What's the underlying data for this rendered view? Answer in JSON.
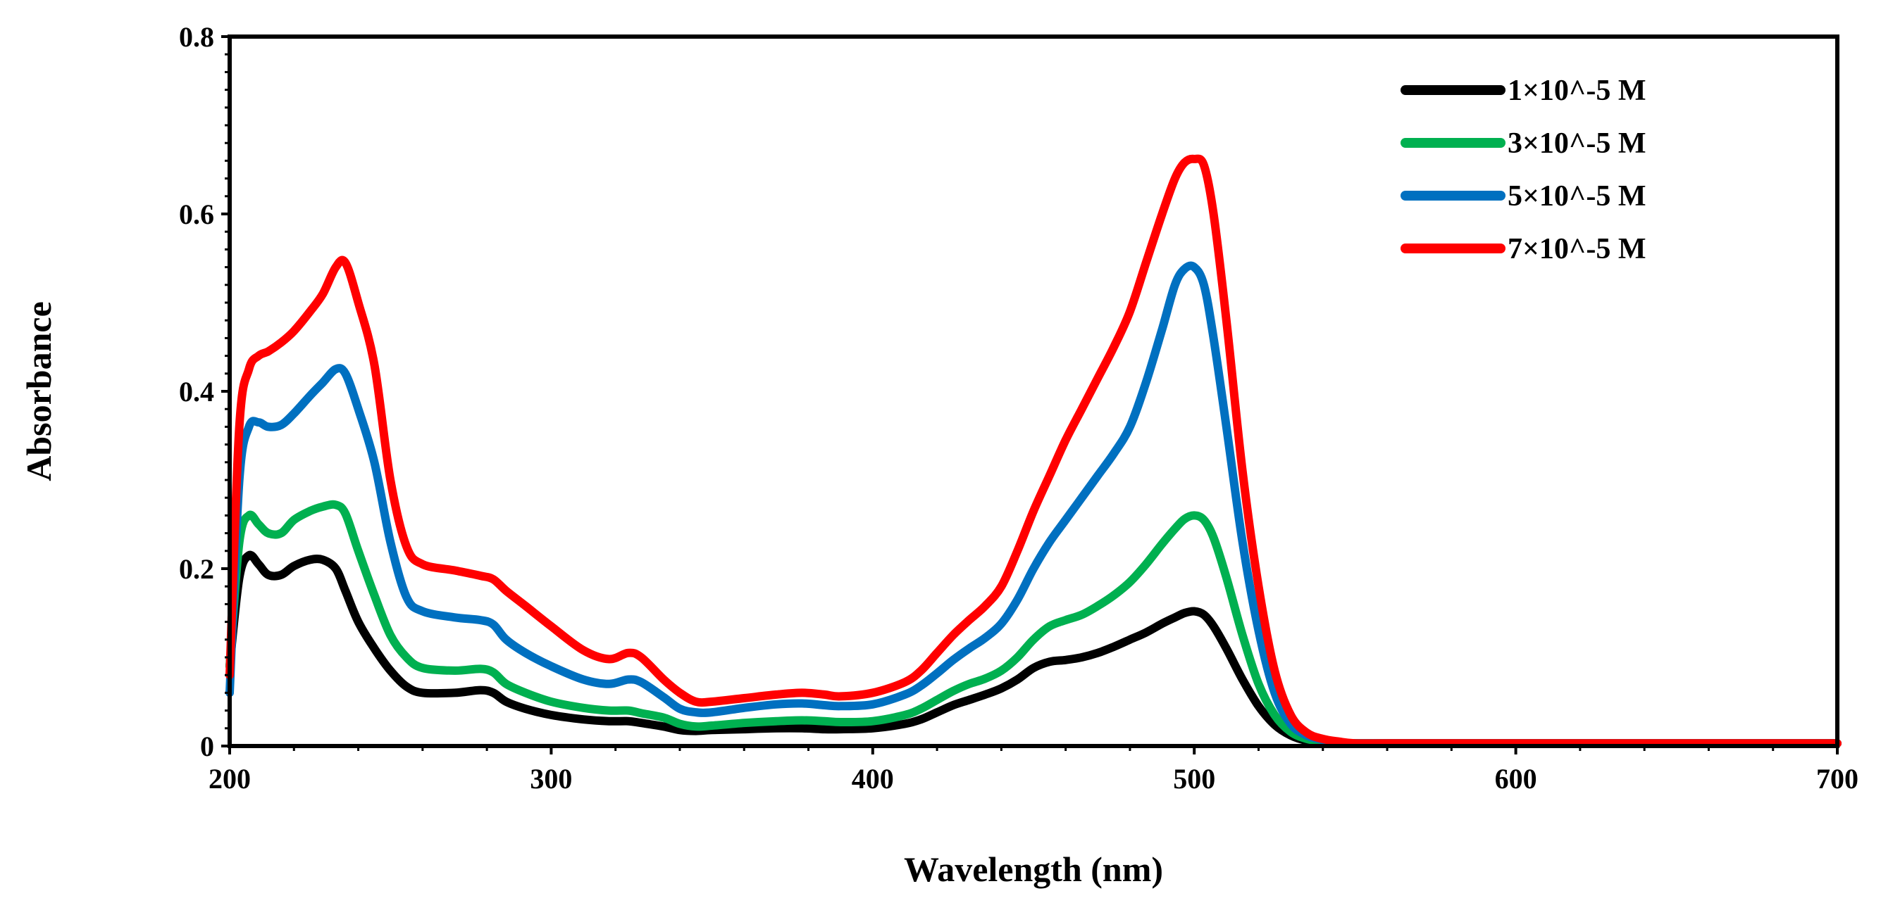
{
  "chart_data": {
    "type": "line",
    "title": "",
    "xlabel": "Wavelength (nm)",
    "ylabel": "Absorbance",
    "xlim": [
      200,
      700
    ],
    "ylim": [
      0,
      0.8
    ],
    "xticks": [
      200,
      300,
      400,
      500,
      600,
      700
    ],
    "xtick_labels": [
      "200",
      "300",
      "400",
      "500",
      "600",
      "700"
    ],
    "yticks": [
      0,
      0.2,
      0.4,
      0.6,
      0.8
    ],
    "ytick_labels": [
      "0",
      "0.2",
      "0.4",
      "0.6",
      "0.8"
    ],
    "grid": false,
    "legend_position": "top-right",
    "x": [
      200,
      203,
      206,
      209,
      212,
      216,
      220,
      225,
      229,
      233,
      236,
      240,
      245,
      250,
      255,
      260,
      270,
      278,
      282,
      286,
      292,
      300,
      310,
      318,
      324,
      328,
      335,
      340,
      345,
      350,
      360,
      370,
      378,
      385,
      390,
      400,
      410,
      415,
      420,
      425,
      430,
      435,
      440,
      445,
      450,
      455,
      460,
      465,
      470,
      475,
      480,
      485,
      490,
      494,
      497,
      500,
      503,
      506,
      510,
      515,
      520,
      525,
      530,
      535,
      540,
      545,
      550,
      560,
      600,
      650,
      700
    ],
    "series": [
      {
        "name": "1×10^-5 M",
        "color": "#000000",
        "values": [
          0.09,
          0.19,
          0.215,
          0.205,
          0.193,
          0.193,
          0.203,
          0.21,
          0.21,
          0.2,
          0.175,
          0.14,
          0.11,
          0.085,
          0.067,
          0.06,
          0.06,
          0.063,
          0.06,
          0.05,
          0.042,
          0.035,
          0.03,
          0.028,
          0.028,
          0.026,
          0.022,
          0.018,
          0.017,
          0.018,
          0.019,
          0.02,
          0.02,
          0.019,
          0.019,
          0.02,
          0.025,
          0.03,
          0.038,
          0.046,
          0.052,
          0.058,
          0.065,
          0.075,
          0.088,
          0.095,
          0.097,
          0.1,
          0.105,
          0.112,
          0.12,
          0.128,
          0.138,
          0.145,
          0.15,
          0.152,
          0.148,
          0.135,
          0.11,
          0.075,
          0.045,
          0.024,
          0.012,
          0.006,
          0.004,
          0.003,
          0.003,
          0.003,
          0.003,
          0.003,
          0.003
        ]
      },
      {
        "name": "3×10^-5 M",
        "color": "#00b050",
        "values": [
          0.09,
          0.23,
          0.26,
          0.25,
          0.24,
          0.24,
          0.255,
          0.265,
          0.27,
          0.272,
          0.262,
          0.22,
          0.17,
          0.125,
          0.1,
          0.088,
          0.085,
          0.087,
          0.083,
          0.07,
          0.06,
          0.05,
          0.043,
          0.04,
          0.04,
          0.037,
          0.032,
          0.025,
          0.022,
          0.023,
          0.026,
          0.028,
          0.029,
          0.028,
          0.027,
          0.028,
          0.035,
          0.042,
          0.052,
          0.062,
          0.07,
          0.076,
          0.085,
          0.1,
          0.12,
          0.135,
          0.142,
          0.148,
          0.158,
          0.17,
          0.185,
          0.205,
          0.228,
          0.245,
          0.256,
          0.26,
          0.255,
          0.235,
          0.19,
          0.125,
          0.07,
          0.035,
          0.016,
          0.008,
          0.005,
          0.004,
          0.003,
          0.003,
          0.003,
          0.003,
          0.003
        ]
      },
      {
        "name": "5×10^-5 M",
        "color": "#0070c0",
        "values": [
          0.06,
          0.3,
          0.36,
          0.365,
          0.36,
          0.362,
          0.375,
          0.395,
          0.41,
          0.425,
          0.42,
          0.38,
          0.32,
          0.23,
          0.168,
          0.152,
          0.145,
          0.142,
          0.137,
          0.12,
          0.105,
          0.09,
          0.075,
          0.07,
          0.075,
          0.072,
          0.055,
          0.042,
          0.038,
          0.038,
          0.043,
          0.047,
          0.048,
          0.046,
          0.045,
          0.047,
          0.058,
          0.068,
          0.082,
          0.097,
          0.11,
          0.122,
          0.138,
          0.165,
          0.2,
          0.23,
          0.255,
          0.28,
          0.305,
          0.33,
          0.36,
          0.41,
          0.47,
          0.52,
          0.538,
          0.54,
          0.52,
          0.46,
          0.36,
          0.23,
          0.13,
          0.06,
          0.025,
          0.012,
          0.007,
          0.004,
          0.003,
          0.003,
          0.003,
          0.003,
          0.003
        ]
      },
      {
        "name": "7×10^-5 M",
        "color": "#ff0000",
        "values": [
          0.08,
          0.36,
          0.425,
          0.44,
          0.445,
          0.455,
          0.468,
          0.49,
          0.51,
          0.54,
          0.545,
          0.5,
          0.43,
          0.3,
          0.225,
          0.205,
          0.198,
          0.192,
          0.188,
          0.175,
          0.158,
          0.135,
          0.108,
          0.098,
          0.105,
          0.1,
          0.075,
          0.06,
          0.05,
          0.05,
          0.054,
          0.058,
          0.06,
          0.058,
          0.056,
          0.06,
          0.072,
          0.085,
          0.105,
          0.125,
          0.142,
          0.158,
          0.18,
          0.22,
          0.265,
          0.305,
          0.345,
          0.38,
          0.415,
          0.45,
          0.49,
          0.545,
          0.6,
          0.64,
          0.658,
          0.662,
          0.655,
          0.6,
          0.48,
          0.31,
          0.18,
          0.085,
          0.035,
          0.015,
          0.008,
          0.005,
          0.003,
          0.003,
          0.003,
          0.003,
          0.003
        ]
      }
    ]
  }
}
